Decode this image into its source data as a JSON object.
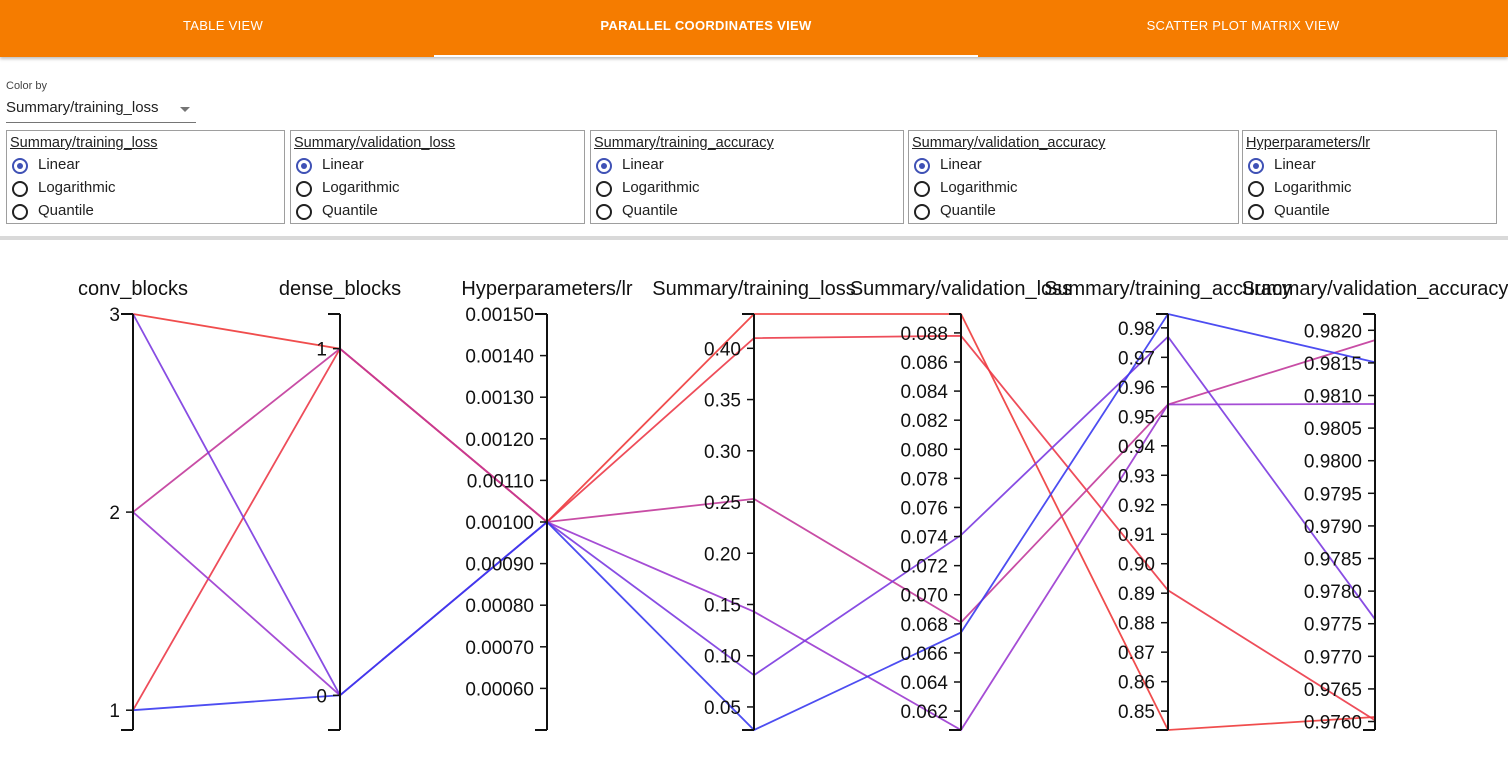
{
  "tabs": [
    {
      "label": "TABLE VIEW",
      "active": false
    },
    {
      "label": "PARALLEL COORDINATES VIEW",
      "active": true
    },
    {
      "label": "SCATTER PLOT MATRIX VIEW",
      "active": false
    }
  ],
  "color_by": {
    "label": "Color by",
    "value": "Summary/training_loss"
  },
  "scale_options": [
    "Linear",
    "Logarithmic",
    "Quantile"
  ],
  "scale_panels": [
    {
      "title": "Summary/training_loss",
      "selected": "Linear"
    },
    {
      "title": "Summary/validation_loss",
      "selected": "Linear"
    },
    {
      "title": "Summary/training_accuracy",
      "selected": "Linear"
    },
    {
      "title": "Summary/validation_accuracy",
      "selected": "Linear"
    },
    {
      "title": "Hyperparameters/lr",
      "selected": "Linear"
    }
  ],
  "colors": {
    "accent": "#f57c00",
    "radio": "#3f51b5",
    "low": "#3a3af0",
    "high": "#ee3a3a"
  },
  "chart_data": {
    "type": "parallel_coordinates",
    "axes": [
      {
        "name": "conv_blocks",
        "ticks": [
          "1",
          "2",
          "3"
        ],
        "range": [
          0.9,
          3.0
        ]
      },
      {
        "name": "dense_blocks",
        "ticks": [
          "0",
          "1"
        ],
        "range": [
          -0.1,
          1.1
        ]
      },
      {
        "name": "Hyperparameters/lr",
        "ticks": [
          "0.00060",
          "0.00070",
          "0.00080",
          "0.00090",
          "0.00100",
          "0.00110",
          "0.00120",
          "0.00130",
          "0.00140",
          "0.00150"
        ],
        "range": [
          0.0005,
          0.0015
        ]
      },
      {
        "name": "Summary/training_loss",
        "ticks": [
          "0.05",
          "0.10",
          "0.15",
          "0.20",
          "0.25",
          "0.30",
          "0.35",
          "0.40"
        ],
        "range": [
          0.0275,
          0.4335
        ]
      },
      {
        "name": "Summary/validation_loss",
        "ticks": [
          "0.062",
          "0.064",
          "0.066",
          "0.068",
          "0.070",
          "0.072",
          "0.074",
          "0.076",
          "0.078",
          "0.080",
          "0.082",
          "0.084",
          "0.086",
          "0.088"
        ],
        "range": [
          0.0607,
          0.0893
        ]
      },
      {
        "name": "Summary/training_accuracy",
        "ticks": [
          "0.85",
          "0.86",
          "0.87",
          "0.88",
          "0.89",
          "0.90",
          "0.91",
          "0.92",
          "0.93",
          "0.94",
          "0.95",
          "0.96",
          "0.97",
          "0.98"
        ],
        "range": [
          0.8436,
          0.9847
        ]
      },
      {
        "name": "Summary/validation_accuracy",
        "ticks": [
          "0.9760",
          "0.9765",
          "0.9770",
          "0.9775",
          "0.9780",
          "0.9785",
          "0.9790",
          "0.9795",
          "0.9800",
          "0.9805",
          "0.9810",
          "0.9815",
          "0.9820"
        ],
        "range": [
          0.97587,
          0.98225
        ]
      }
    ],
    "lines": [
      {
        "values": [
          3,
          1,
          0.001,
          0.4335,
          0.0893,
          0.8436,
          0.97607
        ],
        "color": "#ee3a3a"
      },
      {
        "values": [
          1,
          1,
          0.001,
          0.41,
          0.0878,
          0.891,
          0.97602
        ],
        "color": "#ec3a48"
      },
      {
        "values": [
          2,
          1,
          0.001,
          0.253,
          0.0681,
          0.954,
          0.98185
        ],
        "color": "#c23a9b"
      },
      {
        "values": [
          2,
          0,
          0.001,
          0.143,
          0.0607,
          0.954,
          0.98087
        ],
        "color": "#9b3ad0"
      },
      {
        "values": [
          3,
          0,
          0.001,
          0.081,
          0.0741,
          0.977,
          0.97757
        ],
        "color": "#7b3ae0"
      },
      {
        "values": [
          1,
          0,
          0.001,
          0.0275,
          0.0674,
          0.9847,
          0.98151
        ],
        "color": "#3a3af0"
      }
    ]
  }
}
